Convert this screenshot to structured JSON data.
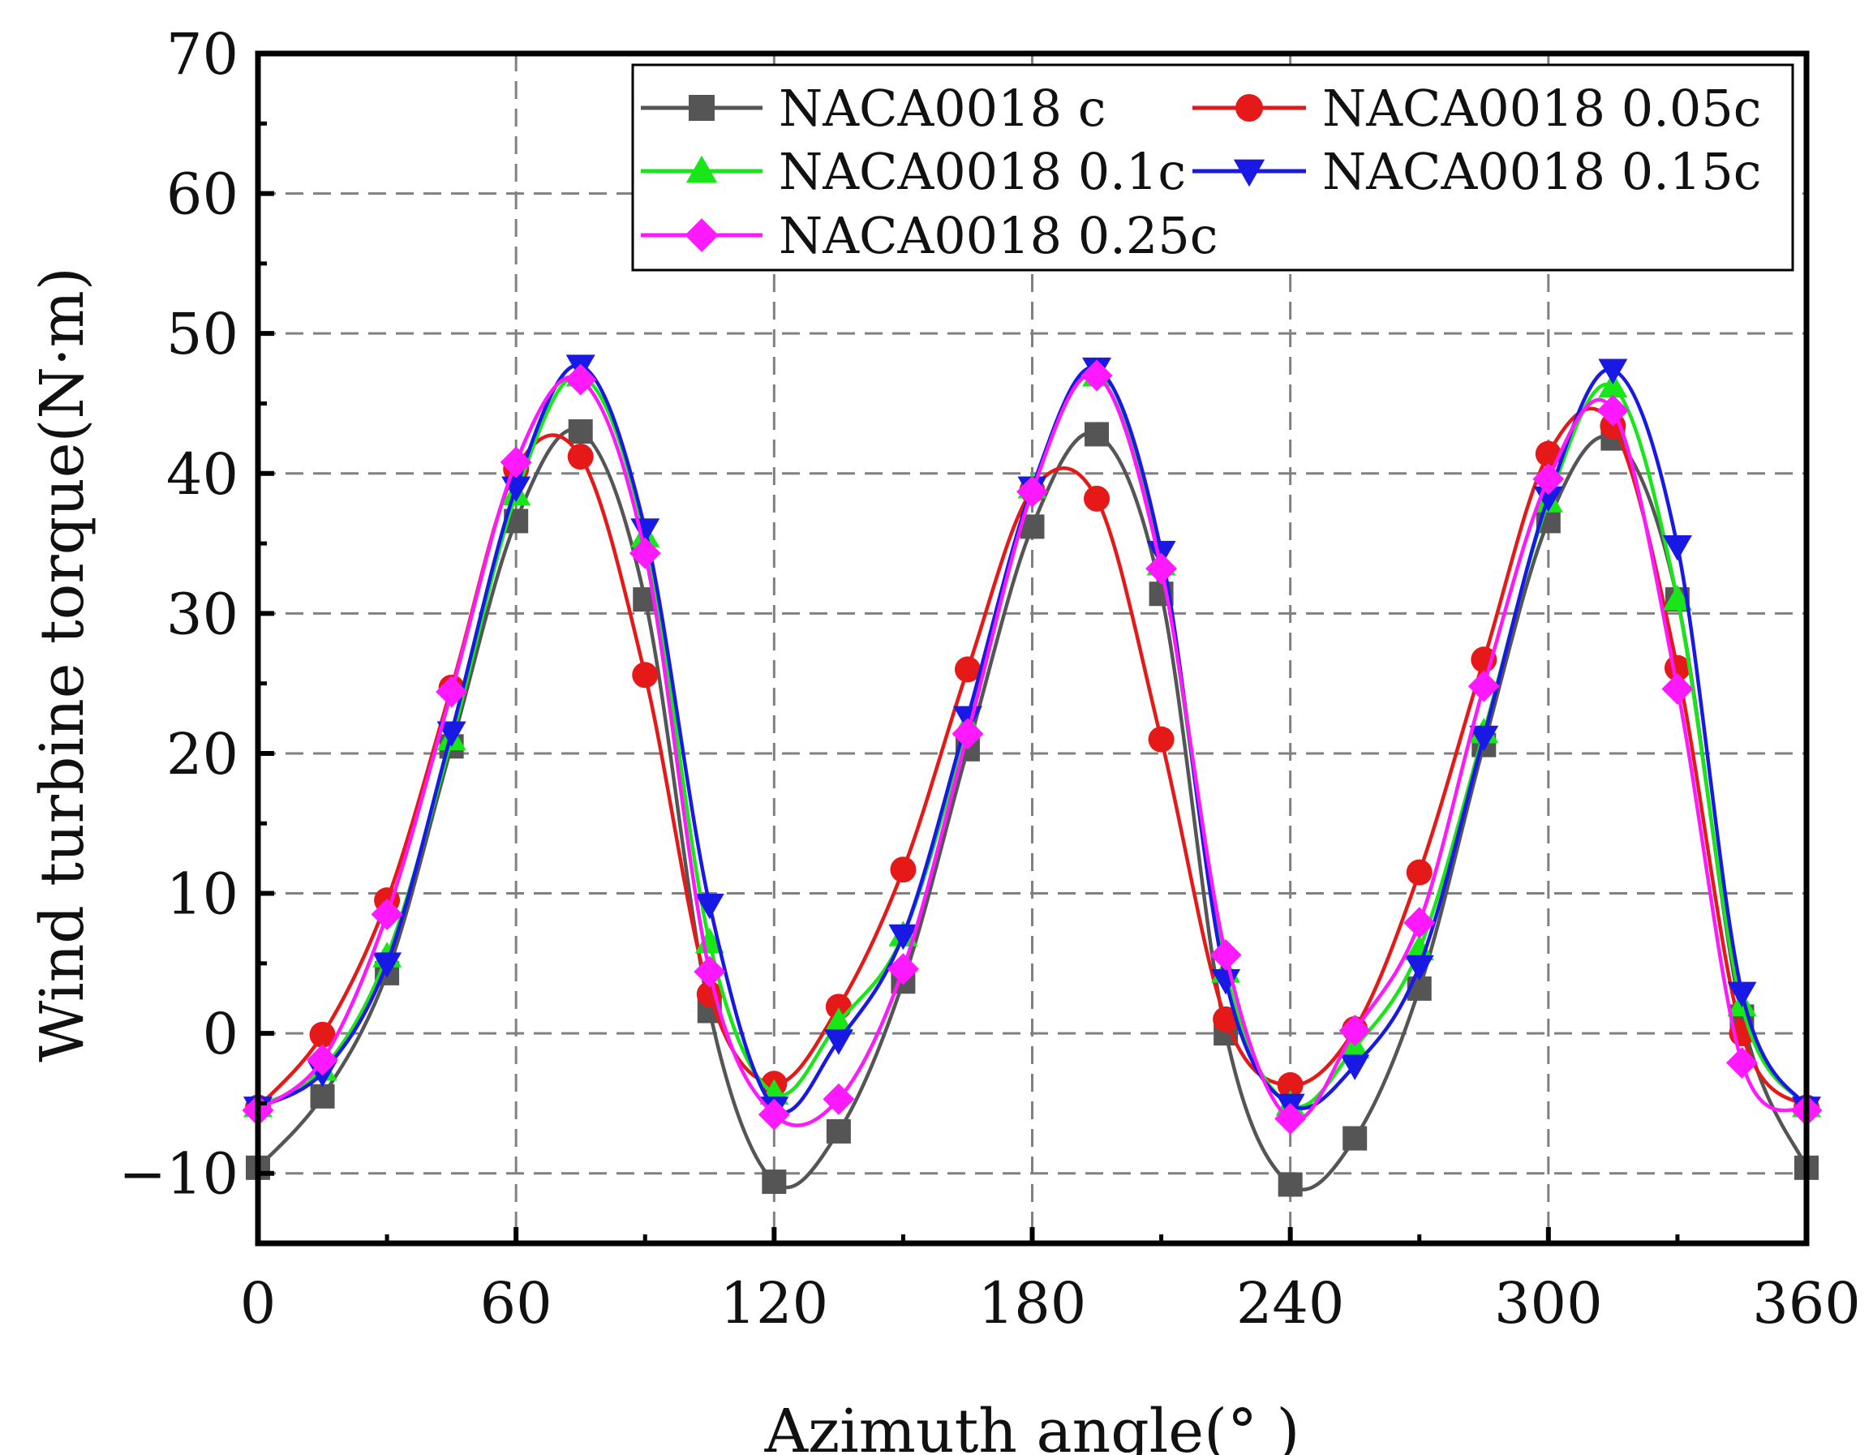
{
  "chart_data": {
    "type": "line",
    "title": "",
    "xlabel": "Azimuth angle(° )",
    "ylabel": "Wind turbine torque(N·m)",
    "xlim": [
      0,
      360
    ],
    "ylim": [
      -15,
      70
    ],
    "xticks": [
      0,
      60,
      120,
      180,
      240,
      300,
      360
    ],
    "yticks": [
      -10,
      0,
      10,
      20,
      30,
      40,
      50,
      60,
      70
    ],
    "grid": true,
    "legend_position": "top-right",
    "x": [
      0,
      15,
      30,
      45,
      60,
      75,
      90,
      105,
      120,
      135,
      150,
      165,
      180,
      195,
      210,
      225,
      240,
      255,
      270,
      285,
      300,
      315,
      330,
      345,
      360
    ],
    "series": [
      {
        "name": "NACA0018 c",
        "color": "#555555",
        "marker": "square",
        "values": [
          -9.6,
          -4.5,
          4.3,
          20.5,
          36.6,
          43.0,
          31.0,
          1.6,
          -10.6,
          -7.0,
          3.7,
          20.3,
          36.2,
          42.8,
          31.4,
          0.0,
          -10.8,
          -7.5,
          3.2,
          20.6,
          36.6,
          42.5,
          31.0,
          1.2,
          -9.6
        ]
      },
      {
        "name": "NACA0018 0.05c",
        "color": "#e61919",
        "marker": "circle",
        "values": [
          -5.3,
          -0.1,
          9.5,
          24.7,
          40.3,
          41.2,
          25.6,
          2.8,
          -3.6,
          1.9,
          11.7,
          26.0,
          38.8,
          38.2,
          21.0,
          1.0,
          -3.7,
          0.3,
          11.5,
          26.7,
          41.4,
          43.4,
          26.1,
          0.0,
          -5.3
        ]
      },
      {
        "name": "NACA0018 0.1c",
        "color": "#19e619",
        "marker": "triangle-up",
        "values": [
          -5.2,
          -2.6,
          5.5,
          21.0,
          38.5,
          47.0,
          35.5,
          6.5,
          -4.3,
          0.8,
          7.0,
          22.0,
          39.0,
          47.0,
          33.5,
          4.4,
          -5.1,
          -1.0,
          6.0,
          21.5,
          38.0,
          46.2,
          31.0,
          2.0,
          -5.2
        ]
      },
      {
        "name": "NACA0018 0.15c",
        "color": "#1919e6",
        "marker": "triangle-down",
        "values": [
          -5.3,
          -2.8,
          5.0,
          21.5,
          39.0,
          47.7,
          36.0,
          9.2,
          -5.3,
          -0.5,
          7.0,
          22.6,
          39.0,
          47.5,
          34.4,
          3.8,
          -5.1,
          -2.3,
          4.8,
          21.2,
          38.3,
          47.4,
          34.8,
          2.9,
          -5.3
        ]
      },
      {
        "name": "NACA0018 0.25c",
        "color": "#ff19ff",
        "marker": "diamond",
        "values": [
          -5.5,
          -1.9,
          8.5,
          24.4,
          40.8,
          46.7,
          34.3,
          4.4,
          -5.8,
          -4.7,
          4.6,
          21.4,
          38.7,
          47.0,
          33.2,
          5.6,
          -6.1,
          0.2,
          7.9,
          24.8,
          39.6,
          44.5,
          24.6,
          -2.1,
          -5.5
        ]
      }
    ]
  }
}
